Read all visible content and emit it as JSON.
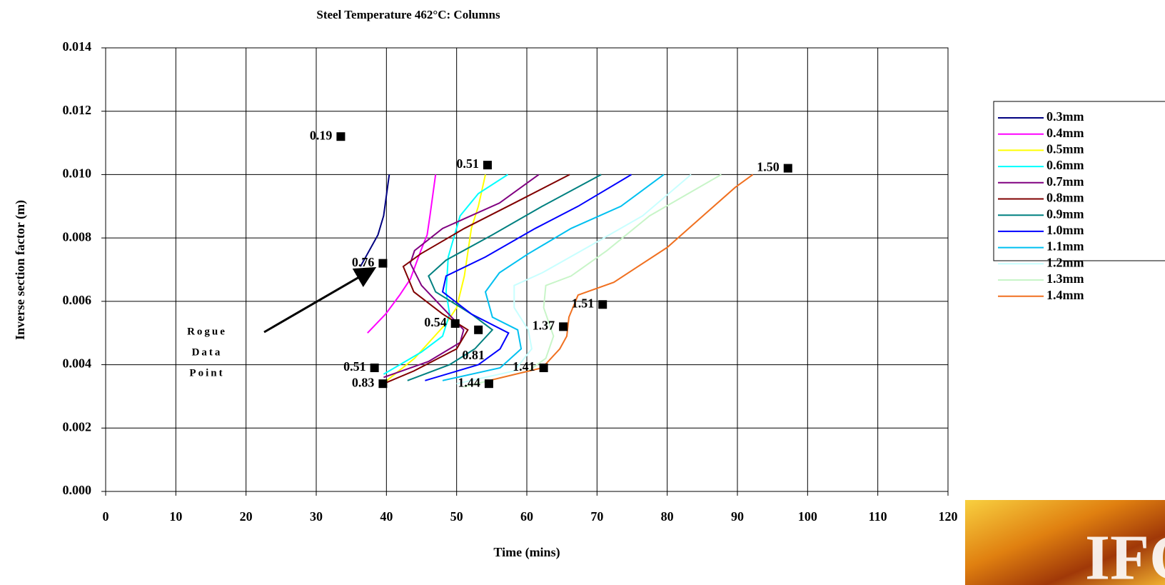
{
  "chart_data": {
    "type": "line",
    "title": "Steel Temperature 462°C: Columns",
    "xlabel": "Time (mins)",
    "ylabel": "Inverse section factor (m)",
    "xlim": [
      0,
      120
    ],
    "xticks": [
      0,
      10,
      20,
      30,
      40,
      50,
      60,
      70,
      80,
      90,
      100,
      110,
      120
    ],
    "ylim": [
      0,
      0.014
    ],
    "yticks": [
      {
        "value": 0,
        "label": "0.000"
      },
      {
        "value": 0.002,
        "label": "0.002"
      },
      {
        "value": 0.004,
        "label": "0.004"
      },
      {
        "value": 0.006,
        "label": "0.006"
      },
      {
        "value": 0.008,
        "label": "0.008"
      },
      {
        "value": 0.01,
        "label": "0.010"
      },
      {
        "value": 0.012,
        "label": "0.012"
      },
      {
        "value": 0.014,
        "label": "0.014"
      }
    ],
    "grid": true,
    "legend": "right",
    "series": [
      {
        "name": "0.3mm",
        "color": "#000080",
        "x": [
          36.3,
          37.3,
          38.8,
          39.6,
          40.4
        ],
        "y": [
          0.0071,
          0.0075,
          0.0081,
          0.0087,
          0.01
        ]
      },
      {
        "name": "0.4mm",
        "color": "#ff00ff",
        "x": [
          37.3,
          39.9,
          41.9,
          43.4,
          44.9,
          45.8,
          46.2,
          47.0
        ],
        "y": [
          0.005,
          0.0056,
          0.0062,
          0.0067,
          0.0076,
          0.0081,
          0.0087,
          0.01
        ]
      },
      {
        "name": "0.5mm",
        "color": "#ffff00",
        "x": [
          39.5,
          44,
          48.5,
          50.0,
          51.1,
          52.1,
          53.1,
          54.1
        ],
        "y": [
          0.0034,
          0.0042,
          0.0053,
          0.0058,
          0.0068,
          0.0083,
          0.009,
          0.01
        ]
      },
      {
        "name": "0.6mm",
        "color": "#00ffff",
        "x": [
          39.6,
          45,
          48,
          49,
          48.5,
          48.8,
          50.5,
          53.1,
          57.3
        ],
        "y": [
          0.0037,
          0.0044,
          0.0049,
          0.0056,
          0.0063,
          0.0074,
          0.0087,
          0.0094,
          0.01
        ]
      },
      {
        "name": "0.7mm",
        "color": "#800080",
        "x": [
          39.6,
          46,
          50.5,
          51,
          48,
          45,
          43.4,
          44,
          48,
          56.1,
          61.7
        ],
        "y": [
          0.0036,
          0.0041,
          0.0047,
          0.0051,
          0.0058,
          0.0065,
          0.0072,
          0.0076,
          0.0083,
          0.0091,
          0.01
        ]
      },
      {
        "name": "0.8mm",
        "color": "#800000",
        "x": [
          39.6,
          43.9,
          50.0,
          51.6,
          48,
          43.9,
          42.4,
          44.9,
          51.1,
          58.2,
          66.1
        ],
        "y": [
          0.0034,
          0.0038,
          0.0045,
          0.0051,
          0.0056,
          0.0063,
          0.0071,
          0.0075,
          0.0083,
          0.0091,
          0.01
        ]
      },
      {
        "name": "0.9mm",
        "color": "#008080",
        "x": [
          43,
          49,
          52.6,
          55.1,
          52.1,
          47,
          46,
          48.5,
          55.1,
          62.2,
          70.6
        ],
        "y": [
          0.0035,
          0.004,
          0.0045,
          0.0051,
          0.0056,
          0.0063,
          0.0068,
          0.0073,
          0.0081,
          0.009,
          0.01
        ]
      },
      {
        "name": "1.0mm",
        "color": "#0000ff",
        "x": [
          45.5,
          53.1,
          56.2,
          57.4,
          52.1,
          48,
          48.5,
          54.1,
          61.2,
          67.3,
          74.9
        ],
        "y": [
          0.0035,
          0.004,
          0.0045,
          0.005,
          0.0056,
          0.0063,
          0.0068,
          0.0074,
          0.0083,
          0.009,
          0.01
        ]
      },
      {
        "name": "1.1mm",
        "color": "#00c0f0",
        "x": [
          48,
          56.2,
          59.2,
          58.7,
          55.1,
          54.1,
          56.1,
          60.2,
          66.3,
          73.4,
          79.5
        ],
        "y": [
          0.0035,
          0.0039,
          0.0045,
          0.0051,
          0.0055,
          0.0063,
          0.0069,
          0.0075,
          0.0083,
          0.009,
          0.01
        ]
      },
      {
        "name": "1.2mm",
        "color": "#c8ffff",
        "x": [
          50,
          58.2,
          60.7,
          60.2,
          58.2,
          58.2,
          62.2,
          69.4,
          76.5,
          83.4
        ],
        "y": [
          0.0034,
          0.0038,
          0.0045,
          0.0051,
          0.0058,
          0.0065,
          0.0069,
          0.0078,
          0.0087,
          0.01
        ]
      },
      {
        "name": "1.3mm",
        "color": "#c8f5c8",
        "x": [
          51,
          60.2,
          62.7,
          63.8,
          62.4,
          62.7,
          66.3,
          71.4,
          77.5,
          87.7
        ],
        "y": [
          0.0033,
          0.0038,
          0.0042,
          0.0049,
          0.0058,
          0.0065,
          0.0068,
          0.0076,
          0.0087,
          0.01
        ]
      },
      {
        "name": "1.4mm",
        "color": "#f07020",
        "x": [
          54.6,
          62.2,
          64.7,
          65.7,
          66,
          67.3,
          72.4,
          80,
          85.1,
          89.7,
          92.2
        ],
        "y": [
          0.0035,
          0.0039,
          0.0045,
          0.0049,
          0.0055,
          0.0062,
          0.0066,
          0.0077,
          0.0087,
          0.0096,
          0.01
        ]
      }
    ],
    "points": {
      "color": "#000000",
      "x": [
        33.5,
        54.4,
        97.2,
        39.5,
        70.8,
        49.8,
        53.1,
        65.2,
        62.4,
        38.3,
        39.5,
        54.6
      ],
      "y": [
        0.0112,
        0.0103,
        0.0102,
        0.0072,
        0.0059,
        0.0053,
        0.0051,
        0.0052,
        0.0039,
        0.0039,
        0.0034,
        0.0034
      ],
      "labels": [
        "0.19",
        "0.51",
        "1.50",
        "0.76",
        "1.51",
        "0.54",
        "0.81",
        "1.37",
        "1.41",
        "0.51",
        "0.83",
        "1.44"
      ]
    },
    "annotation": [
      "Rogue",
      "Data",
      "Point"
    ],
    "logo": "IFC"
  }
}
